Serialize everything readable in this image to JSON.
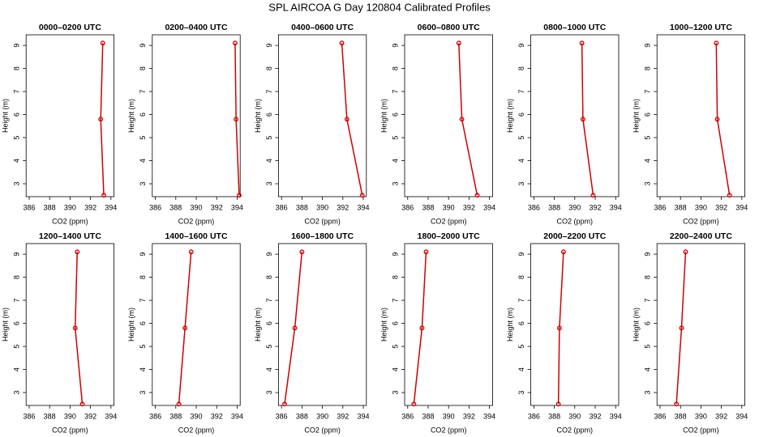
{
  "title": "SPL AIRCOA G  Day 120804  Calibrated Profiles",
  "chart_data": [
    {
      "type": "line",
      "title": "0000–0200 UTC",
      "xlabel": "CO2 (ppm)",
      "ylabel": "Height (m)",
      "color": "#d00000",
      "x": [
        393.3,
        393.0,
        393.2
      ],
      "values": [
        2.5,
        5.8,
        9.1
      ],
      "xlim": [
        385.7,
        394.3
      ],
      "ylim": [
        2.44,
        9.46
      ],
      "xticks": [
        386,
        388,
        390,
        392,
        394
      ],
      "yticks": [
        3,
        4,
        5,
        6,
        7,
        8,
        9
      ]
    },
    {
      "type": "line",
      "title": "0200–0400 UTC",
      "xlabel": "CO2 (ppm)",
      "ylabel": "Height (m)",
      "color": "#d00000",
      "x": [
        394.2,
        393.9,
        393.8
      ],
      "values": [
        2.5,
        5.8,
        9.1
      ],
      "xlim": [
        385.7,
        394.3
      ],
      "ylim": [
        2.44,
        9.46
      ],
      "xticks": [
        386,
        388,
        390,
        392,
        394
      ],
      "yticks": [
        3,
        4,
        5,
        6,
        7,
        8,
        9
      ]
    },
    {
      "type": "line",
      "title": "0400–0600 UTC",
      "xlabel": "CO2 (ppm)",
      "ylabel": "Height (m)",
      "color": "#d00000",
      "x": [
        393.9,
        392.4,
        391.9
      ],
      "values": [
        2.5,
        5.8,
        9.1
      ],
      "xlim": [
        385.7,
        394.3
      ],
      "ylim": [
        2.44,
        9.46
      ],
      "xticks": [
        386,
        388,
        390,
        392,
        394
      ],
      "yticks": [
        3,
        4,
        5,
        6,
        7,
        8,
        9
      ]
    },
    {
      "type": "line",
      "title": "0600–0800 UTC",
      "xlabel": "CO2 (ppm)",
      "ylabel": "Height (m)",
      "color": "#d00000",
      "x": [
        392.8,
        391.3,
        391.0
      ],
      "values": [
        2.5,
        5.8,
        9.1
      ],
      "xlim": [
        385.7,
        394.3
      ],
      "ylim": [
        2.44,
        9.46
      ],
      "xticks": [
        386,
        388,
        390,
        392,
        394
      ],
      "yticks": [
        3,
        4,
        5,
        6,
        7,
        8,
        9
      ]
    },
    {
      "type": "line",
      "title": "0800–1000 UTC",
      "xlabel": "CO2 (ppm)",
      "ylabel": "Height (m)",
      "color": "#d00000",
      "x": [
        391.8,
        390.8,
        390.7
      ],
      "values": [
        2.5,
        5.8,
        9.1
      ],
      "xlim": [
        385.7,
        394.3
      ],
      "ylim": [
        2.44,
        9.46
      ],
      "xticks": [
        386,
        388,
        390,
        392,
        394
      ],
      "yticks": [
        3,
        4,
        5,
        6,
        7,
        8,
        9
      ]
    },
    {
      "type": "line",
      "title": "1000–1200 UTC",
      "xlabel": "CO2 (ppm)",
      "ylabel": "Height (m)",
      "color": "#d00000",
      "x": [
        392.8,
        391.6,
        391.5
      ],
      "values": [
        2.5,
        5.8,
        9.1
      ],
      "xlim": [
        385.7,
        394.3
      ],
      "ylim": [
        2.44,
        9.46
      ],
      "xticks": [
        386,
        388,
        390,
        392,
        394
      ],
      "yticks": [
        3,
        4,
        5,
        6,
        7,
        8,
        9
      ]
    },
    {
      "type": "line",
      "title": "1200–1400 UTC",
      "xlabel": "CO2 (ppm)",
      "ylabel": "Height (m)",
      "color": "#d00000",
      "x": [
        391.2,
        390.5,
        390.7
      ],
      "values": [
        2.5,
        5.8,
        9.1
      ],
      "xlim": [
        385.7,
        394.3
      ],
      "ylim": [
        2.44,
        9.46
      ],
      "xticks": [
        386,
        388,
        390,
        392,
        394
      ],
      "yticks": [
        3,
        4,
        5,
        6,
        7,
        8,
        9
      ]
    },
    {
      "type": "line",
      "title": "1400–1600 UTC",
      "xlabel": "CO2 (ppm)",
      "ylabel": "Height (m)",
      "color": "#d00000",
      "x": [
        388.3,
        388.9,
        389.5
      ],
      "values": [
        2.5,
        5.8,
        9.1
      ],
      "xlim": [
        385.7,
        394.3
      ],
      "ylim": [
        2.44,
        9.46
      ],
      "xticks": [
        386,
        388,
        390,
        392,
        394
      ],
      "yticks": [
        3,
        4,
        5,
        6,
        7,
        8,
        9
      ]
    },
    {
      "type": "line",
      "title": "1600–1800 UTC",
      "xlabel": "CO2 (ppm)",
      "ylabel": "Height (m)",
      "color": "#d00000",
      "x": [
        386.3,
        387.3,
        388.0
      ],
      "values": [
        2.5,
        5.8,
        9.1
      ],
      "xlim": [
        385.7,
        394.3
      ],
      "ylim": [
        2.44,
        9.46
      ],
      "xticks": [
        386,
        388,
        390,
        392,
        394
      ],
      "yticks": [
        3,
        4,
        5,
        6,
        7,
        8,
        9
      ]
    },
    {
      "type": "line",
      "title": "1800–2000 UTC",
      "xlabel": "CO2 (ppm)",
      "ylabel": "Height (m)",
      "color": "#d00000",
      "x": [
        386.6,
        387.4,
        387.8
      ],
      "values": [
        2.5,
        5.8,
        9.1
      ],
      "xlim": [
        385.7,
        394.3
      ],
      "ylim": [
        2.44,
        9.46
      ],
      "xticks": [
        386,
        388,
        390,
        392,
        394
      ],
      "yticks": [
        3,
        4,
        5,
        6,
        7,
        8,
        9
      ]
    },
    {
      "type": "line",
      "title": "2000–2200 UTC",
      "xlabel": "CO2 (ppm)",
      "ylabel": "Height (m)",
      "color": "#d00000",
      "x": [
        388.4,
        388.5,
        388.9
      ],
      "values": [
        2.5,
        5.8,
        9.1
      ],
      "xlim": [
        385.7,
        394.3
      ],
      "ylim": [
        2.44,
        9.46
      ],
      "xticks": [
        386,
        388,
        390,
        392,
        394
      ],
      "yticks": [
        3,
        4,
        5,
        6,
        7,
        8,
        9
      ]
    },
    {
      "type": "line",
      "title": "2200–2400 UTC",
      "xlabel": "CO2 (ppm)",
      "ylabel": "Height (m)",
      "color": "#d00000",
      "x": [
        387.6,
        388.1,
        388.5
      ],
      "values": [
        2.5,
        5.8,
        9.1
      ],
      "xlim": [
        385.7,
        394.3
      ],
      "ylim": [
        2.44,
        9.46
      ],
      "xticks": [
        386,
        388,
        390,
        392,
        394
      ],
      "yticks": [
        3,
        4,
        5,
        6,
        7,
        8,
        9
      ]
    }
  ]
}
